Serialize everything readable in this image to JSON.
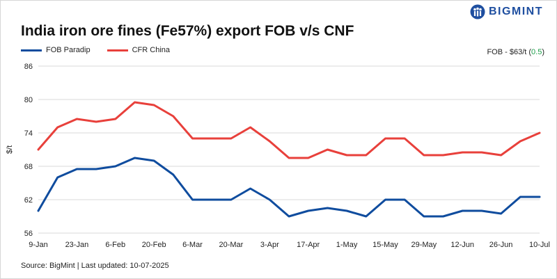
{
  "brand": {
    "name": "BIGMINT",
    "logo_icon": "people-icon",
    "color": "#1f4fa0"
  },
  "chart_data": {
    "type": "line",
    "title": "India iron ore fines (Fe57%) export FOB v/s CNF",
    "ylabel": "$/t",
    "xlabel": "",
    "ylim": [
      56,
      86
    ],
    "yticks": [
      56,
      62,
      68,
      74,
      80,
      86
    ],
    "grid": true,
    "legend_position": "top-left",
    "x": [
      "9-Jan",
      "16-Jan",
      "23-Jan",
      "30-Jan",
      "6-Feb",
      "13-Feb",
      "20-Feb",
      "27-Feb",
      "6-Mar",
      "13-Mar",
      "20-Mar",
      "27-Mar",
      "3-Apr",
      "10-Apr",
      "17-Apr",
      "24-Apr",
      "1-May",
      "8-May",
      "15-May",
      "22-May",
      "29-May",
      "5-Jun",
      "12-Jun",
      "19-Jun",
      "26-Jun",
      "3-Jul",
      "10-Jul"
    ],
    "xtick_labels": [
      "9-Jan",
      "23-Jan",
      "6-Feb",
      "20-Feb",
      "6-Mar",
      "20-Mar",
      "3-Apr",
      "17-Apr",
      "1-May",
      "15-May",
      "29-May",
      "12-Jun",
      "26-Jun",
      "10-Jul"
    ],
    "series": [
      {
        "name": "FOB Paradip",
        "color": "#0f4c9e",
        "values": [
          60,
          66,
          67.5,
          67.5,
          68,
          69.5,
          69,
          66.5,
          62,
          62,
          62,
          64,
          62,
          59,
          60,
          60.5,
          60,
          59,
          62,
          62,
          59,
          59,
          60,
          60,
          59.5,
          62.5,
          62.5
        ]
      },
      {
        "name": "CFR China",
        "color": "#e8403b",
        "values": [
          71,
          75,
          76.5,
          76,
          76.5,
          79.5,
          79,
          77,
          73,
          73,
          73,
          75,
          72.5,
          69.5,
          69.5,
          71,
          70,
          70,
          73,
          73,
          70,
          70,
          70.5,
          70.5,
          70,
          72.5,
          74
        ]
      }
    ],
    "annotation": {
      "prefix": "FOB - $63/t (",
      "change": "0.5",
      "suffix": ")",
      "change_color": "#1e9e4a"
    }
  },
  "source": "Source: BigMint | Last updated: 10-07-2025"
}
